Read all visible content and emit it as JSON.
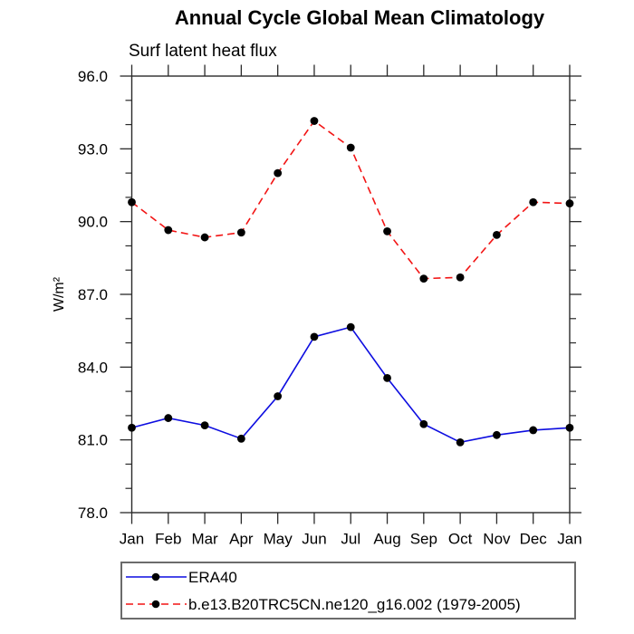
{
  "page": {
    "title": "Annual Cycle Global Mean Climatology",
    "subtitle": "Surf latent heat flux"
  },
  "chart_data": {
    "type": "line",
    "title": "Annual Cycle Global Mean Climatology",
    "subtitle": "Surf latent heat flux",
    "ylabel": "W/m²",
    "xlabel": "",
    "categories": [
      "Jan",
      "Feb",
      "Mar",
      "Apr",
      "May",
      "Jun",
      "Jul",
      "Aug",
      "Sep",
      "Oct",
      "Nov",
      "Dec",
      "Jan"
    ],
    "series": [
      {
        "name": "ERA40",
        "line_style": "solid",
        "line_color": "#0d0de0",
        "marker": "circle",
        "marker_color": "#000000",
        "values": [
          81.5,
          81.9,
          81.6,
          81.05,
          82.8,
          85.25,
          85.65,
          83.55,
          81.65,
          80.9,
          81.2,
          81.4,
          81.5
        ]
      },
      {
        "name": "b.e13.B20TRC5CN.ne120_g16.002 (1979-2005)",
        "line_style": "dashed",
        "line_color": "#f21414",
        "marker": "circle",
        "marker_color": "#000000",
        "values": [
          90.8,
          89.65,
          89.35,
          89.55,
          92.0,
          94.15,
          93.05,
          89.6,
          87.65,
          87.7,
          89.45,
          90.8,
          90.75
        ]
      }
    ],
    "ylim": [
      78.0,
      96.0
    ],
    "ytick_labels": [
      "78.0",
      "81.0",
      "84.0",
      "87.0",
      "90.0",
      "93.0",
      "96.0"
    ],
    "y_minor_step": 1.0,
    "grid": false,
    "legend_position": "bottom",
    "axis_color": "#2a2a2a"
  }
}
